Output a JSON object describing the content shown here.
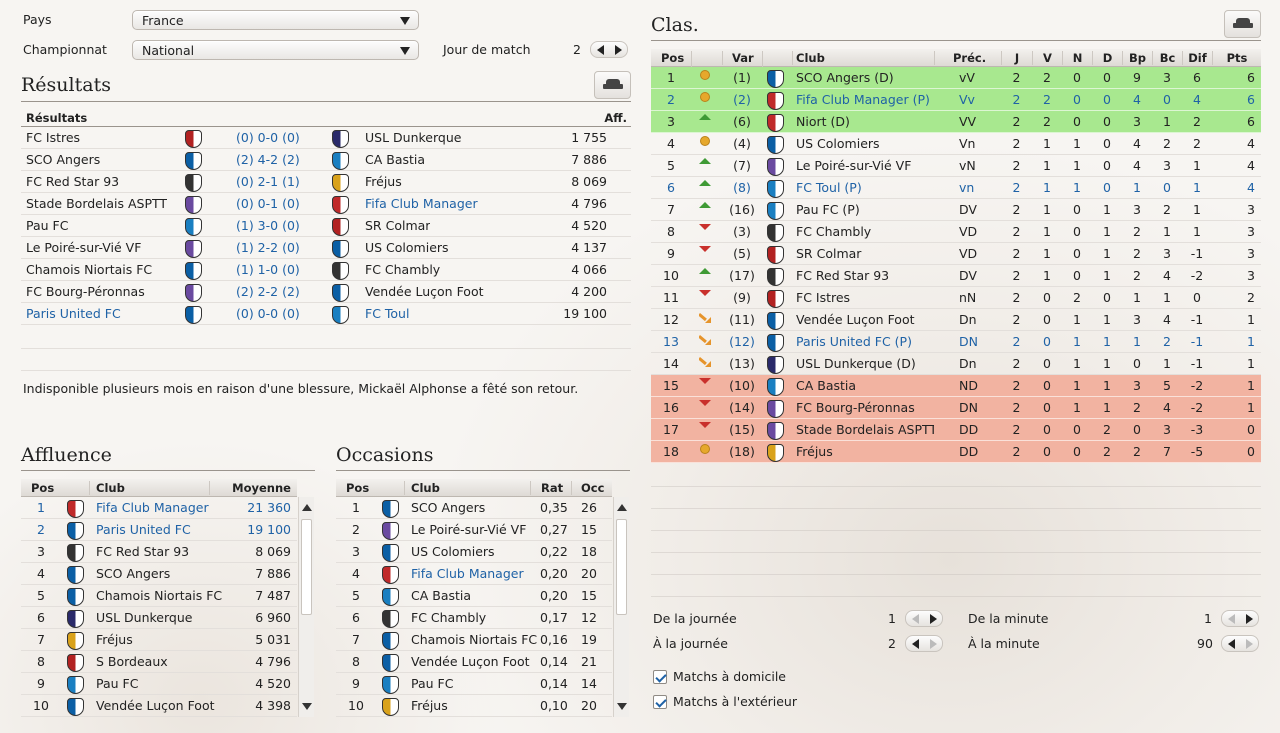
{
  "filters": {
    "country_label": "Pays",
    "country_value": "France",
    "league_label": "Championnat",
    "league_value": "National",
    "matchday_label": "Jour de match",
    "matchday_value": "2"
  },
  "results": {
    "title": "Résultats",
    "col_results": "Résultats",
    "col_att": "Aff.",
    "rows": [
      {
        "home": "FC Istres",
        "score": "(0) 0-0 (0)",
        "away": "USL Dunkerque",
        "att": "1 755"
      },
      {
        "home": "SCO Angers",
        "score": "(2) 4-2 (2)",
        "away": "CA Bastia",
        "att": "7 886"
      },
      {
        "home": "FC Red Star 93",
        "score": "(0) 2-1 (1)",
        "away": "Fréjus",
        "att": "8 069"
      },
      {
        "home": "Stade Bordelais ASPTT",
        "score": "(0) 0-1 (0)",
        "away": "Fifa Club Manager",
        "att": "4 796"
      },
      {
        "home": "Pau FC",
        "score": "(1) 3-0 (0)",
        "away": "SR Colmar",
        "att": "4 520"
      },
      {
        "home": "Le Poiré-sur-Vié VF",
        "score": "(1) 2-2 (0)",
        "away": "US Colomiers",
        "att": "4 137"
      },
      {
        "home": "Chamois Niortais FC",
        "score": "(1) 1-0 (0)",
        "away": "FC Chambly",
        "att": "4 066"
      },
      {
        "home": "FC Bourg-Péronnas",
        "score": "(2) 2-2 (2)",
        "away": "Vendée Luçon Foot",
        "att": "4 200"
      },
      {
        "home": "Paris United FC",
        "score": "(0) 0-0 (0)",
        "away": "FC Toul",
        "att": "19 100"
      }
    ],
    "news": "Indisponible plusieurs mois en raison d'une blessure, Mickaël Alphonse a fêté son retour."
  },
  "attendance": {
    "title": "Affluence",
    "col_pos": "Pos",
    "col_club": "Club",
    "col_avg": "Moyenne",
    "rows": [
      {
        "pos": "1",
        "club": "Fifa Club Manager",
        "avg": "21 360"
      },
      {
        "pos": "2",
        "club": "Paris United FC",
        "avg": "19 100"
      },
      {
        "pos": "3",
        "club": "FC Red Star 93",
        "avg": "8 069"
      },
      {
        "pos": "4",
        "club": "SCO Angers",
        "avg": "7 886"
      },
      {
        "pos": "5",
        "club": "Chamois Niortais FC",
        "avg": "7 487"
      },
      {
        "pos": "6",
        "club": "USL Dunkerque",
        "avg": "6 960"
      },
      {
        "pos": "7",
        "club": "Fréjus",
        "avg": "5 031"
      },
      {
        "pos": "8",
        "club": "S Bordeaux",
        "avg": "4 796"
      },
      {
        "pos": "9",
        "club": "Pau FC",
        "avg": "4 520"
      },
      {
        "pos": "10",
        "club": "Vendée Luçon Foot",
        "avg": "4 398"
      }
    ]
  },
  "chances": {
    "title": "Occasions",
    "col_pos": "Pos",
    "col_club": "Club",
    "col_rat": "Rat",
    "col_occ": "Occ",
    "rows": [
      {
        "pos": "1",
        "club": "SCO Angers",
        "rat": "0,35",
        "occ": "26"
      },
      {
        "pos": "2",
        "club": "Le Poiré-sur-Vié VF",
        "rat": "0,27",
        "occ": "15"
      },
      {
        "pos": "3",
        "club": "US Colomiers",
        "rat": "0,22",
        "occ": "18"
      },
      {
        "pos": "4",
        "club": "Fifa Club Manager",
        "rat": "0,20",
        "occ": "20"
      },
      {
        "pos": "5",
        "club": "CA Bastia",
        "rat": "0,20",
        "occ": "15"
      },
      {
        "pos": "6",
        "club": "FC Chambly",
        "rat": "0,17",
        "occ": "12"
      },
      {
        "pos": "7",
        "club": "Chamois Niortais FC",
        "rat": "0,16",
        "occ": "19"
      },
      {
        "pos": "8",
        "club": "Vendée Luçon Foot",
        "rat": "0,14",
        "occ": "21"
      },
      {
        "pos": "9",
        "club": "Pau FC",
        "rat": "0,14",
        "occ": "14"
      },
      {
        "pos": "10",
        "club": "Fréjus",
        "rat": "0,10",
        "occ": "20"
      }
    ]
  },
  "standings": {
    "title": "Clas.",
    "cols": {
      "pos": "Pos",
      "var": "Var",
      "club": "Club",
      "prev": "Préc.",
      "j": "J",
      "v": "V",
      "n": "N",
      "d": "D",
      "bp": "Bp",
      "bc": "Bc",
      "dif": "Dif",
      "pts": "Pts"
    },
    "rows": [
      {
        "pos": "1",
        "trend": "same",
        "var": "(1)",
        "club": "SCO Angers  (D)",
        "prev": "vV",
        "j": "2",
        "v": "2",
        "n": "0",
        "d": "0",
        "bp": "9",
        "bc": "3",
        "dif": "6",
        "pts": "6",
        "zone": "promo",
        "user": false
      },
      {
        "pos": "2",
        "trend": "same",
        "var": "(2)",
        "club": "Fifa Club Manager  (P)",
        "prev": "Vv",
        "j": "2",
        "v": "2",
        "n": "0",
        "d": "0",
        "bp": "4",
        "bc": "0",
        "dif": "4",
        "pts": "6",
        "zone": "promo",
        "user": true
      },
      {
        "pos": "3",
        "trend": "up",
        "var": "(6)",
        "club": "Niort  (D)",
        "prev": "VV",
        "j": "2",
        "v": "2",
        "n": "0",
        "d": "0",
        "bp": "3",
        "bc": "1",
        "dif": "2",
        "pts": "6",
        "zone": "promo",
        "user": false
      },
      {
        "pos": "4",
        "trend": "same",
        "var": "(4)",
        "club": "US Colomiers",
        "prev": "Vn",
        "j": "2",
        "v": "1",
        "n": "1",
        "d": "0",
        "bp": "4",
        "bc": "2",
        "dif": "2",
        "pts": "4",
        "zone": "",
        "user": false
      },
      {
        "pos": "5",
        "trend": "up",
        "var": "(7)",
        "club": "Le Poiré-sur-Vié VF",
        "prev": "vN",
        "j": "2",
        "v": "1",
        "n": "1",
        "d": "0",
        "bp": "4",
        "bc": "3",
        "dif": "1",
        "pts": "4",
        "zone": "",
        "user": false
      },
      {
        "pos": "6",
        "trend": "up",
        "var": "(8)",
        "club": "FC Toul  (P)",
        "prev": "vn",
        "j": "2",
        "v": "1",
        "n": "1",
        "d": "0",
        "bp": "1",
        "bc": "0",
        "dif": "1",
        "pts": "4",
        "zone": "",
        "user": true
      },
      {
        "pos": "7",
        "trend": "up",
        "var": "(16)",
        "club": "Pau FC  (P)",
        "prev": "DV",
        "j": "2",
        "v": "1",
        "n": "0",
        "d": "1",
        "bp": "3",
        "bc": "2",
        "dif": "1",
        "pts": "3",
        "zone": "",
        "user": false
      },
      {
        "pos": "8",
        "trend": "down",
        "var": "(3)",
        "club": "FC Chambly",
        "prev": "VD",
        "j": "2",
        "v": "1",
        "n": "0",
        "d": "1",
        "bp": "2",
        "bc": "1",
        "dif": "1",
        "pts": "3",
        "zone": "",
        "user": false
      },
      {
        "pos": "9",
        "trend": "down",
        "var": "(5)",
        "club": "SR Colmar",
        "prev": "VD",
        "j": "2",
        "v": "1",
        "n": "0",
        "d": "1",
        "bp": "2",
        "bc": "3",
        "dif": "-1",
        "pts": "3",
        "zone": "",
        "user": false
      },
      {
        "pos": "10",
        "trend": "up",
        "var": "(17)",
        "club": "FC Red Star 93",
        "prev": "DV",
        "j": "2",
        "v": "1",
        "n": "0",
        "d": "1",
        "bp": "2",
        "bc": "4",
        "dif": "-2",
        "pts": "3",
        "zone": "",
        "user": false
      },
      {
        "pos": "11",
        "trend": "down",
        "var": "(9)",
        "club": "FC Istres",
        "prev": "nN",
        "j": "2",
        "v": "0",
        "n": "2",
        "d": "0",
        "bp": "1",
        "bc": "1",
        "dif": "0",
        "pts": "2",
        "zone": "",
        "user": false
      },
      {
        "pos": "12",
        "trend": "diag",
        "var": "(11)",
        "club": "Vendée Luçon Foot",
        "prev": "Dn",
        "j": "2",
        "v": "0",
        "n": "1",
        "d": "1",
        "bp": "3",
        "bc": "4",
        "dif": "-1",
        "pts": "1",
        "zone": "",
        "user": false
      },
      {
        "pos": "13",
        "trend": "diag",
        "var": "(12)",
        "club": "Paris United FC  (P)",
        "prev": "DN",
        "j": "2",
        "v": "0",
        "n": "1",
        "d": "1",
        "bp": "1",
        "bc": "2",
        "dif": "-1",
        "pts": "1",
        "zone": "",
        "user": true
      },
      {
        "pos": "14",
        "trend": "diag",
        "var": "(13)",
        "club": "USL Dunkerque  (D)",
        "prev": "Dn",
        "j": "2",
        "v": "0",
        "n": "1",
        "d": "1",
        "bp": "0",
        "bc": "1",
        "dif": "-1",
        "pts": "1",
        "zone": "",
        "user": false
      },
      {
        "pos": "15",
        "trend": "down",
        "var": "(10)",
        "club": "CA Bastia",
        "prev": "ND",
        "j": "2",
        "v": "0",
        "n": "1",
        "d": "1",
        "bp": "3",
        "bc": "5",
        "dif": "-2",
        "pts": "1",
        "zone": "releg",
        "user": false
      },
      {
        "pos": "16",
        "trend": "down",
        "var": "(14)",
        "club": "FC Bourg-Péronnas",
        "prev": "DN",
        "j": "2",
        "v": "0",
        "n": "1",
        "d": "1",
        "bp": "2",
        "bc": "4",
        "dif": "-2",
        "pts": "1",
        "zone": "releg",
        "user": false
      },
      {
        "pos": "17",
        "trend": "down",
        "var": "(15)",
        "club": "Stade Bordelais ASPTT",
        "prev": "DD",
        "j": "2",
        "v": "0",
        "n": "0",
        "d": "2",
        "bp": "0",
        "bc": "3",
        "dif": "-3",
        "pts": "0",
        "zone": "releg",
        "user": false
      },
      {
        "pos": "18",
        "trend": "same",
        "var": "(18)",
        "club": "Fréjus",
        "prev": "DD",
        "j": "2",
        "v": "0",
        "n": "0",
        "d": "2",
        "bp": "2",
        "bc": "7",
        "dif": "-5",
        "pts": "0",
        "zone": "releg",
        "user": false
      }
    ]
  },
  "range": {
    "from_day_label": "De la journée",
    "from_day_value": "1",
    "to_day_label": "À la journée",
    "to_day_value": "2",
    "from_min_label": "De la minute",
    "from_min_value": "1",
    "to_min_label": "À la minute",
    "to_min_value": "90"
  },
  "options": {
    "home_label": "Matchs à domicile",
    "home_checked": true,
    "away_label": "Matchs à l'extérieur",
    "away_checked": true
  },
  "colors": {
    "accent": "#1f62a6",
    "promo": "#a8e88f",
    "releg": "#f2b3a1",
    "trend_up": "#3f9a35",
    "trend_down": "#c9302c",
    "trend_same": "#e6a82c"
  },
  "user_clubs": [
    "Fifa Club Manager",
    "Paris United FC",
    "FC Toul"
  ]
}
